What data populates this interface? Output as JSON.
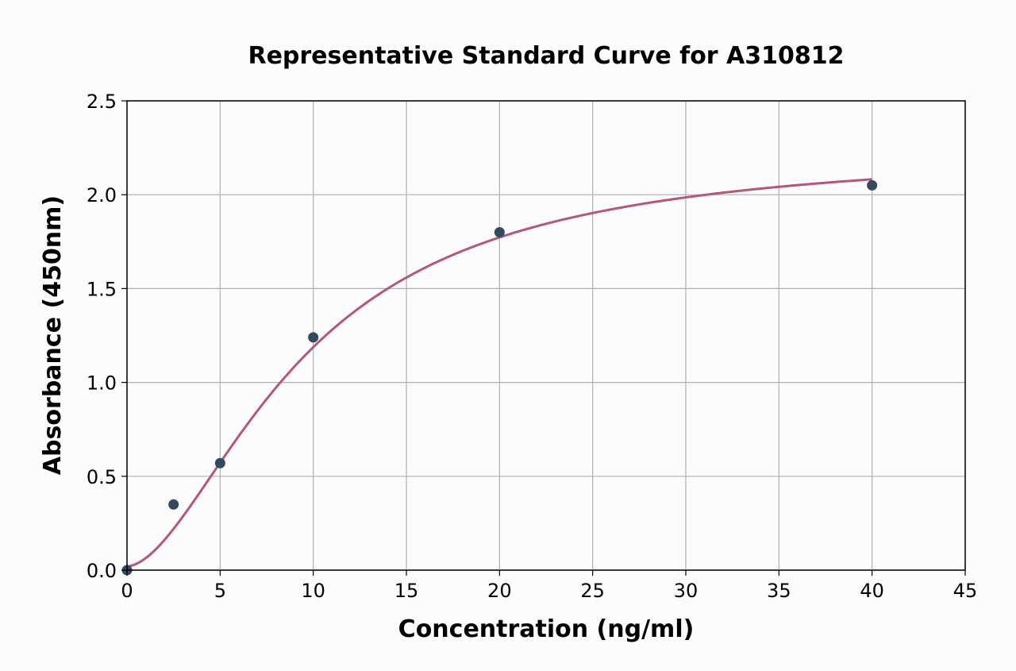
{
  "chart_data": {
    "type": "scatter",
    "title": "Representative Standard Curve for A310812",
    "xlabel": "Concentration (ng/ml)",
    "ylabel": "Absorbance (450nm)",
    "xlim": [
      0,
      45
    ],
    "ylim": [
      0,
      2.5
    ],
    "x_ticks": [
      0,
      5,
      10,
      15,
      20,
      25,
      30,
      35,
      40,
      45
    ],
    "x_tick_labels": [
      "0",
      "5",
      "10",
      "15",
      "20",
      "25",
      "30",
      "35",
      "40",
      "45"
    ],
    "y_ticks": [
      0,
      0.5,
      1.0,
      1.5,
      2.0,
      2.5
    ],
    "y_tick_labels": [
      "0.0",
      "0.5",
      "1.0",
      "1.5",
      "2.0",
      "2.5"
    ],
    "grid": true,
    "points": {
      "x": [
        0,
        2.5,
        5,
        10,
        20,
        40
      ],
      "y": [
        0.0,
        0.35,
        0.57,
        1.24,
        1.8,
        2.05
      ]
    },
    "fit_curve": {
      "type": "4PL",
      "a": 0.02,
      "d": 2.25,
      "c": 9.47,
      "b": 1.74,
      "x_range": [
        0,
        40
      ]
    },
    "colors": {
      "points": "#34495e",
      "curve": "#b5567a",
      "grid": "#b0b0b0"
    }
  }
}
